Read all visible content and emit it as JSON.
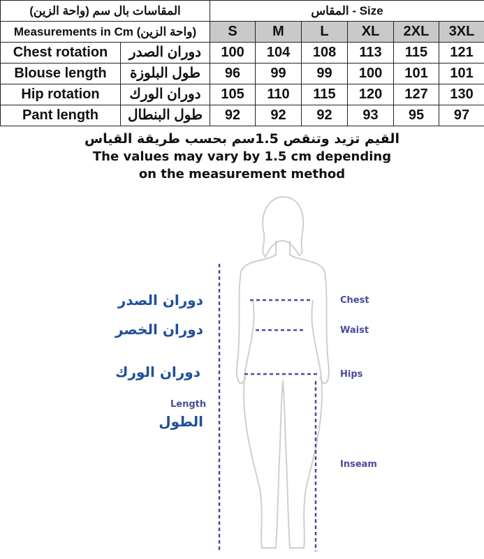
{
  "table": {
    "title_ar": "المقاسات بال سم (واحة الزين)",
    "size_header": "المقاس - Size",
    "subtitle": "Measurements in Cm (واحة الزين)",
    "sizes": [
      "S",
      "M",
      "L",
      "XL",
      "2XL",
      "3XL"
    ],
    "rows": [
      {
        "en": "Chest rotation",
        "ar": "دوران الصدر",
        "values": [
          "100",
          "104",
          "108",
          "113",
          "115",
          "121"
        ]
      },
      {
        "en": "Blouse length",
        "ar": "طول البلوزة",
        "values": [
          "96",
          "99",
          "99",
          "100",
          "101",
          "101"
        ]
      },
      {
        "en": "Hip rotation",
        "ar": "دوران الورك",
        "values": [
          "105",
          "110",
          "115",
          "120",
          "127",
          "130"
        ]
      },
      {
        "en": "Pant length",
        "ar": "طول البنطال",
        "values": [
          "92",
          "92",
          "92",
          "93",
          "95",
          "97"
        ]
      }
    ]
  },
  "note": {
    "ar": "القيم تزيد وتنقص 1.5سم بحسب طريقة القياس",
    "en_line1": "The values may vary by 1.5 cm depending",
    "en_line2": "on the measurement method"
  },
  "diagram": {
    "ar_chest": "دوران الصدر",
    "ar_waist": "دوران الخصر",
    "ar_hip": "دوران الورك",
    "length_en": "Length",
    "length_ar": "الطول",
    "chest": "Chest",
    "waist": "Waist",
    "hips": "Hips",
    "inseam": "Inseam"
  },
  "colors": {
    "header_gray": "#c9c9c9",
    "label_blue": "#1f4f9a",
    "line_purple": "#4b4b9a"
  }
}
